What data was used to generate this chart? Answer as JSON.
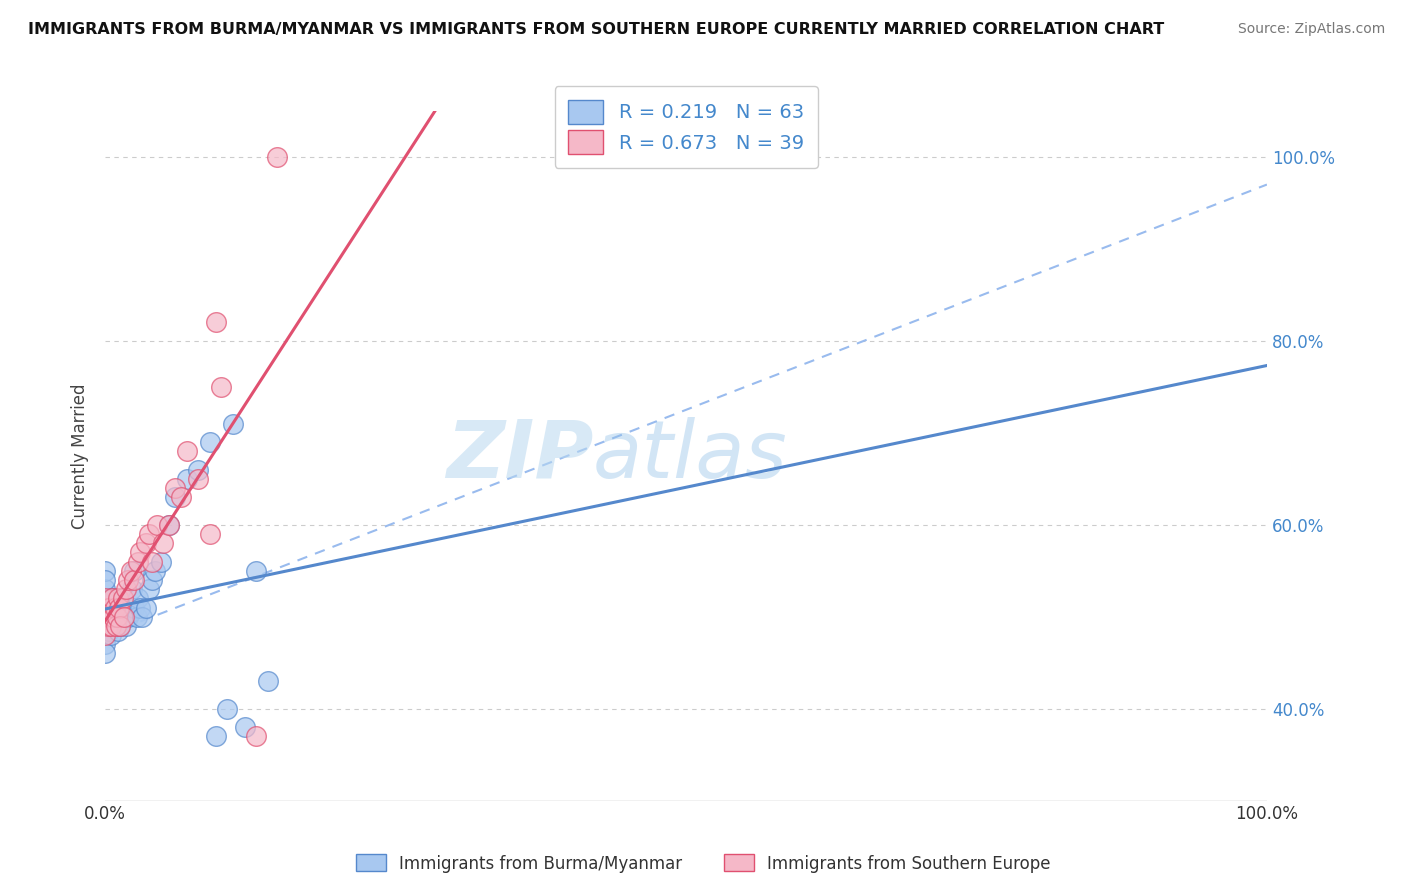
{
  "title": "IMMIGRANTS FROM BURMA/MYANMAR VS IMMIGRANTS FROM SOUTHERN EUROPE CURRENTLY MARRIED CORRELATION CHART",
  "source": "Source: ZipAtlas.com",
  "ylabel": "Currently Married",
  "legend1_label": "Immigrants from Burma/Myanmar",
  "legend2_label": "Immigrants from Southern Europe",
  "R1": 0.219,
  "N1": 63,
  "R2": 0.673,
  "N2": 39,
  "color_blue_fill": "#A8C8F0",
  "color_pink_fill": "#F5B8C8",
  "color_blue_line": "#5588CC",
  "color_pink_line": "#E05070",
  "color_dashed": "#99BBEE",
  "xlim": [
    0.0,
    1.0
  ],
  "ylim": [
    0.3,
    1.05
  ],
  "blue_x": [
    0.0,
    0.0,
    0.0,
    0.0,
    0.0,
    0.0,
    0.0,
    0.0,
    0.0,
    0.0,
    0.002,
    0.002,
    0.003,
    0.003,
    0.004,
    0.004,
    0.005,
    0.005,
    0.005,
    0.006,
    0.006,
    0.007,
    0.007,
    0.008,
    0.009,
    0.009,
    0.01,
    0.01,
    0.011,
    0.011,
    0.012,
    0.013,
    0.014,
    0.015,
    0.016,
    0.017,
    0.018,
    0.019,
    0.02,
    0.022,
    0.023,
    0.025,
    0.025,
    0.027,
    0.028,
    0.03,
    0.032,
    0.035,
    0.038,
    0.04,
    0.043,
    0.048,
    0.055,
    0.06,
    0.07,
    0.08,
    0.095,
    0.105,
    0.12,
    0.14,
    0.09,
    0.11,
    0.13
  ],
  "blue_y": [
    0.5,
    0.51,
    0.49,
    0.52,
    0.53,
    0.55,
    0.54,
    0.48,
    0.47,
    0.46,
    0.505,
    0.495,
    0.515,
    0.485,
    0.51,
    0.49,
    0.52,
    0.5,
    0.48,
    0.51,
    0.49,
    0.505,
    0.52,
    0.5,
    0.51,
    0.49,
    0.5,
    0.515,
    0.485,
    0.505,
    0.51,
    0.49,
    0.505,
    0.51,
    0.5,
    0.515,
    0.49,
    0.505,
    0.5,
    0.505,
    0.53,
    0.51,
    0.55,
    0.5,
    0.52,
    0.51,
    0.5,
    0.51,
    0.53,
    0.54,
    0.55,
    0.56,
    0.6,
    0.63,
    0.65,
    0.66,
    0.37,
    0.4,
    0.38,
    0.43,
    0.69,
    0.71,
    0.55
  ],
  "pink_x": [
    0.0,
    0.0,
    0.0,
    0.0,
    0.002,
    0.003,
    0.004,
    0.005,
    0.006,
    0.007,
    0.008,
    0.009,
    0.01,
    0.011,
    0.012,
    0.013,
    0.015,
    0.016,
    0.018,
    0.02,
    0.022,
    0.025,
    0.028,
    0.03,
    0.035,
    0.038,
    0.04,
    0.045,
    0.05,
    0.055,
    0.06,
    0.065,
    0.07,
    0.08,
    0.09,
    0.095,
    0.1,
    0.13,
    0.148
  ],
  "pink_y": [
    0.48,
    0.5,
    0.51,
    0.52,
    0.49,
    0.51,
    0.5,
    0.49,
    0.52,
    0.5,
    0.51,
    0.49,
    0.5,
    0.52,
    0.51,
    0.49,
    0.52,
    0.5,
    0.53,
    0.54,
    0.55,
    0.54,
    0.56,
    0.57,
    0.58,
    0.59,
    0.56,
    0.6,
    0.58,
    0.6,
    0.64,
    0.63,
    0.68,
    0.65,
    0.59,
    0.82,
    0.75,
    0.37,
    1.0
  ]
}
